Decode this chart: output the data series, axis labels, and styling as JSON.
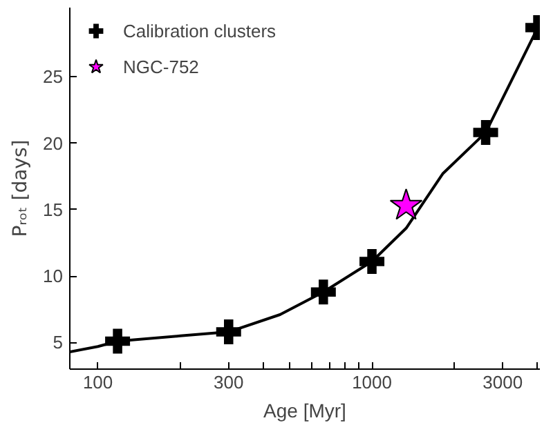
{
  "chart_data": {
    "type": "scatter",
    "xlabel": "Age [Myr]",
    "ylabel": "Pᵣₒₜ [days]",
    "log": "x",
    "xlim": [
      79,
      4100
    ],
    "ylim": [
      3,
      30.2
    ],
    "xticks": [
      100,
      {
        "value": 200,
        "label": null
      },
      300,
      {
        "value": 400,
        "label": null
      },
      {
        "value": 500,
        "label": null
      },
      {
        "value": 600,
        "label": null
      },
      {
        "value": 700,
        "label": null
      },
      {
        "value": 800,
        "label": null
      },
      {
        "value": 900,
        "label": null
      },
      1000,
      {
        "value": 2000,
        "label": null
      },
      3000,
      {
        "value": 4000,
        "label": null
      }
    ],
    "yticks": [
      5,
      10,
      15,
      20,
      25
    ],
    "grid": false,
    "legend": "top left",
    "series": [
      {
        "type": "line",
        "color": "#000000",
        "x": [
          79,
          100,
          118,
          200,
          300,
          462,
          665,
          1000,
          1333,
          1813,
          2600,
          4030
        ],
        "values": [
          4.3,
          4.7,
          5.1,
          5.5,
          5.8,
          7.1,
          8.8,
          11.1,
          13.6,
          17.7,
          20.8,
          28.7
        ],
        "line_style": "solid",
        "marker": "none"
      },
      {
        "name": "Calibration clusters",
        "color": "#000000",
        "marker": "cross",
        "x": [
          118,
          300,
          665,
          1000,
          2600,
          4030
        ],
        "values": [
          5.1,
          5.8,
          8.8,
          11.1,
          20.8,
          28.7
        ]
      },
      {
        "name": "NGC-752",
        "color": "#ff00ff",
        "marker": "star",
        "x": [
          1333
        ],
        "values": [
          15.3
        ]
      }
    ]
  }
}
